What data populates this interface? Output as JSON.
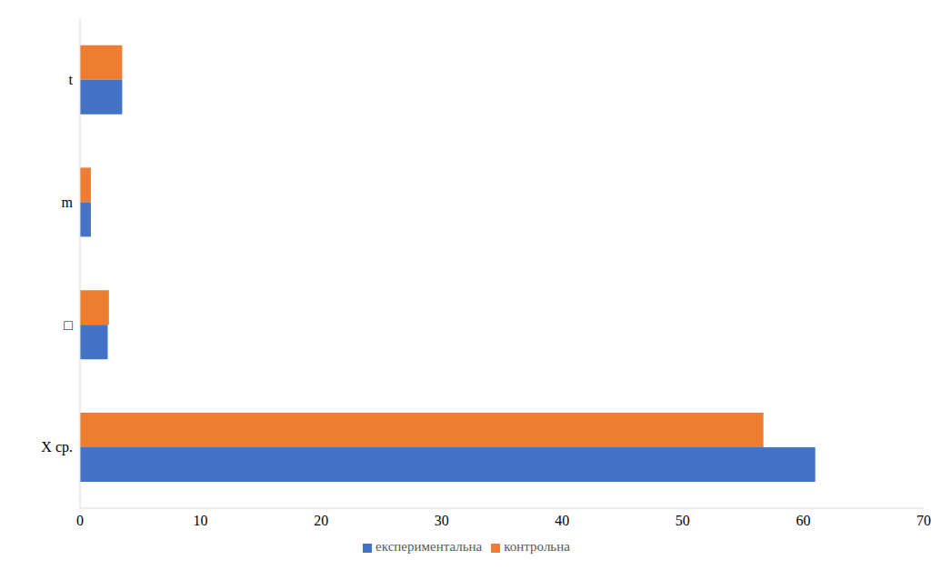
{
  "chart_data": {
    "type": "bar",
    "orientation": "horizontal",
    "categories": [
      "X ср.",
      "□",
      "m",
      "t"
    ],
    "series": [
      {
        "name": "контрольна",
        "color": "#ed7d31",
        "values": [
          56.7,
          2.4,
          0.9,
          3.5
        ]
      },
      {
        "name": "експериментальна",
        "color": "#4472c4",
        "values": [
          61,
          2.3,
          0.9,
          3.5
        ]
      }
    ],
    "xlim": [
      0,
      70
    ],
    "xticks": [
      0,
      10,
      20,
      30,
      40,
      50,
      60,
      70
    ],
    "grid": false,
    "legend": "bottom"
  }
}
